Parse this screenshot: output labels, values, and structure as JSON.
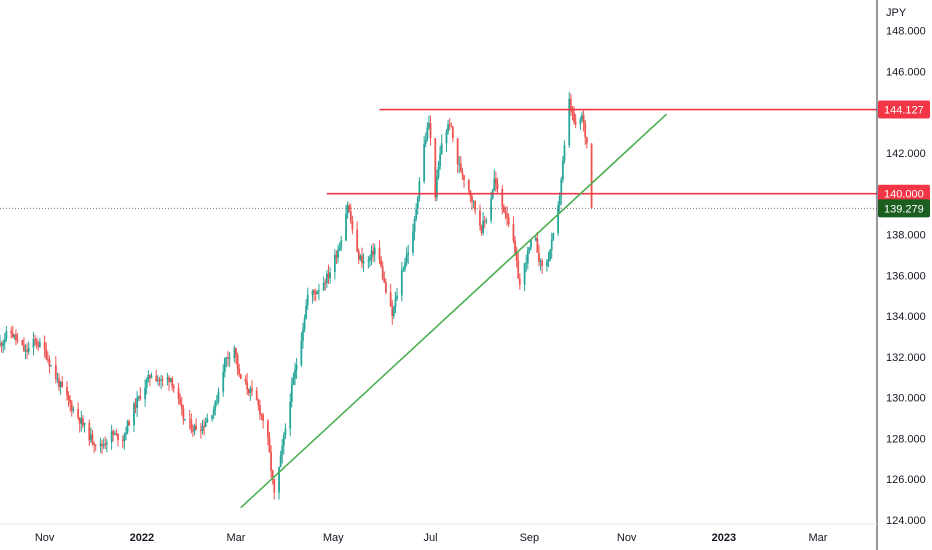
{
  "currency_label": "JPY",
  "colors": {
    "up": "#26a69a",
    "down": "#ef5350",
    "resistance": "#f23645",
    "trendline": "#4caf50",
    "last_price_badge": "#1b5e20",
    "dotted_price_line": "#757575"
  },
  "chart_data": {
    "type": "candlestick",
    "title": "",
    "xlabel": "",
    "ylabel": "JPY",
    "ylim": [
      123.8,
      149.5
    ],
    "y_ticks": [
      "124.000",
      "126.000",
      "128.000",
      "130.000",
      "132.000",
      "134.000",
      "136.000",
      "138.000",
      "140.000",
      "142.000",
      "144.000",
      "146.000",
      "148.000"
    ],
    "x_ticks": [
      {
        "label": "Nov",
        "date": "2021-11-01",
        "bold": false
      },
      {
        "label": "2022",
        "date": "2022-01-01",
        "bold": true
      },
      {
        "label": "Mar",
        "date": "2022-03-01",
        "bold": false
      },
      {
        "label": "May",
        "date": "2022-05-01",
        "bold": false
      },
      {
        "label": "Jul",
        "date": "2022-07-01",
        "bold": false
      },
      {
        "label": "Sep",
        "date": "2022-09-01",
        "bold": false
      },
      {
        "label": "Nov",
        "date": "2022-11-01",
        "bold": false
      },
      {
        "label": "2023",
        "date": "2023-01-01",
        "bold": true
      },
      {
        "label": "Mar",
        "date": "2023-03-01",
        "bold": false
      }
    ],
    "x_range": [
      "2021-10-04",
      "2023-04-07"
    ],
    "price_path": [
      [
        "2021-10-04",
        132.6
      ],
      [
        "2021-10-10",
        133.3
      ],
      [
        "2021-10-20",
        132.2
      ],
      [
        "2021-10-26",
        132.8
      ],
      [
        "2021-11-01",
        132.3
      ],
      [
        "2021-11-08",
        131.0
      ],
      [
        "2021-11-16",
        129.8
      ],
      [
        "2021-11-24",
        128.8
      ],
      [
        "2021-11-30",
        128.0
      ],
      [
        "2021-12-06",
        127.6
      ],
      [
        "2021-12-13",
        128.2
      ],
      [
        "2021-12-20",
        128.0
      ],
      [
        "2021-12-27",
        129.5
      ],
      [
        "2022-01-03",
        130.6
      ],
      [
        "2022-01-07",
        131.2
      ],
      [
        "2022-01-13",
        130.8
      ],
      [
        "2022-01-19",
        131.0
      ],
      [
        "2022-01-27",
        129.0
      ],
      [
        "2022-02-02",
        128.5
      ],
      [
        "2022-02-08",
        128.6
      ],
      [
        "2022-02-16",
        129.6
      ],
      [
        "2022-02-22",
        131.8
      ],
      [
        "2022-02-28",
        132.5
      ],
      [
        "2022-03-03",
        131.0
      ],
      [
        "2022-03-08",
        130.5
      ],
      [
        "2022-03-14",
        129.8
      ],
      [
        "2022-03-20",
        128.5
      ],
      [
        "2022-03-25",
        125.2
      ],
      [
        "2022-03-28",
        126.5
      ],
      [
        "2022-04-04",
        130.0
      ],
      [
        "2022-04-10",
        132.5
      ],
      [
        "2022-04-15",
        135.0
      ],
      [
        "2022-04-20",
        135.2
      ],
      [
        "2022-04-28",
        136.0
      ],
      [
        "2022-05-05",
        137.5
      ],
      [
        "2022-05-10",
        139.5
      ],
      [
        "2022-05-16",
        137.0
      ],
      [
        "2022-05-22",
        136.5
      ],
      [
        "2022-05-28",
        137.5
      ],
      [
        "2022-06-03",
        135.2
      ],
      [
        "2022-06-07",
        134.0
      ],
      [
        "2022-06-13",
        136.2
      ],
      [
        "2022-06-20",
        138.0
      ],
      [
        "2022-06-26",
        142.0
      ],
      [
        "2022-06-30",
        143.5
      ],
      [
        "2022-07-04",
        140.0
      ],
      [
        "2022-07-08",
        142.5
      ],
      [
        "2022-07-13",
        143.5
      ],
      [
        "2022-07-18",
        141.5
      ],
      [
        "2022-07-24",
        140.5
      ],
      [
        "2022-07-28",
        139.5
      ],
      [
        "2022-08-02",
        138.3
      ],
      [
        "2022-08-06",
        139.0
      ],
      [
        "2022-08-10",
        140.7
      ],
      [
        "2022-08-14",
        139.5
      ],
      [
        "2022-08-18",
        139.0
      ],
      [
        "2022-08-22",
        137.5
      ],
      [
        "2022-08-26",
        135.5
      ],
      [
        "2022-08-30",
        136.8
      ],
      [
        "2022-09-04",
        138.0
      ],
      [
        "2022-09-08",
        136.5
      ],
      [
        "2022-09-12",
        136.6
      ],
      [
        "2022-09-18",
        138.5
      ],
      [
        "2022-09-22",
        141.5
      ],
      [
        "2022-09-26",
        144.5
      ],
      [
        "2022-09-30",
        143.2
      ],
      [
        "2022-10-04",
        143.8
      ],
      [
        "2022-10-08",
        142.0
      ],
      [
        "2022-10-10",
        139.3
      ]
    ],
    "horizontal_levels": [
      {
        "value": 144.127,
        "label": "144.127",
        "from": "2022-05-30"
      },
      {
        "value": 140.0,
        "label": "140.000",
        "from": "2022-04-27"
      }
    ],
    "trendline": {
      "from": [
        "2022-03-04",
        124.6
      ],
      "to": [
        "2022-11-26",
        143.9
      ]
    },
    "last_price": {
      "value": 139.279,
      "label": "139.279"
    }
  }
}
